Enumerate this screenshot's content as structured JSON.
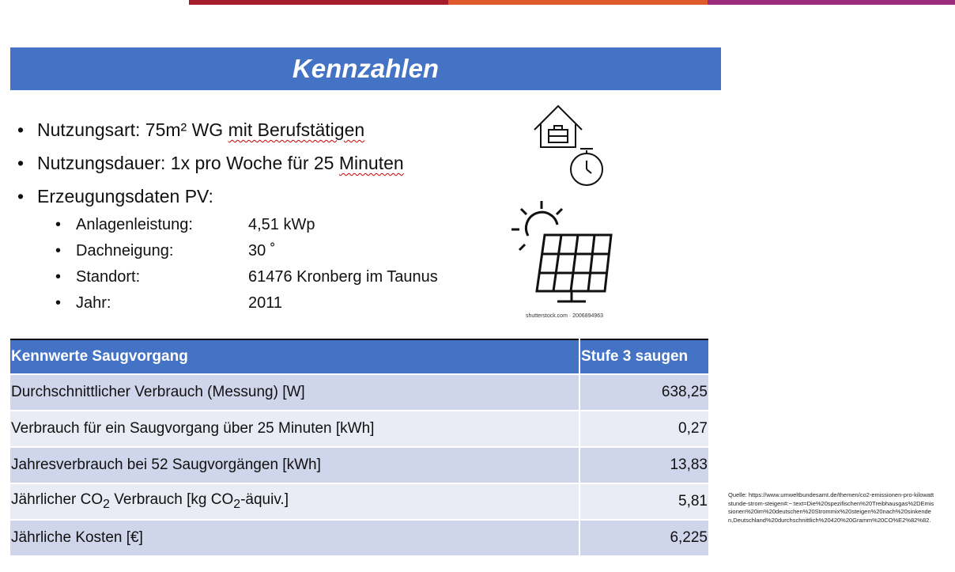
{
  "title": "Kennzahlen",
  "bullets": [
    {
      "prefix": "Nutzungsart: 75m² WG ",
      "flagged": "mit Berufstätigen"
    },
    {
      "prefix": "Nutzungsdauer: 1x pro Woche für 25 ",
      "flagged": "Minuten"
    },
    {
      "prefix": "Erzeugungsdaten PV:",
      "flagged": ""
    }
  ],
  "pv_details": [
    {
      "key": "Anlagenleistung:",
      "value": "4,51 kWp"
    },
    {
      "key": "Dachneigung:",
      "value": "30 ˚"
    },
    {
      "key": "Standort:",
      "value": "61476 Kronberg im Taunus"
    },
    {
      "key": "Jahr:",
      "value": "2011"
    }
  ],
  "icons": [
    "house-briefcase-icon",
    "stopwatch-icon",
    "sun-solar-panel-icon"
  ],
  "image_caption": "shutterstock.com · 2006894963",
  "table": {
    "header": [
      "Kennwerte Saugvorgang",
      "Stufe 3 saugen"
    ],
    "rows": [
      {
        "label": "Durchschnittlicher Verbrauch (Messung) [W]",
        "value": "638,25"
      },
      {
        "label": "Verbrauch für ein Saugvorgang über 25 Minuten [kWh]",
        "value": "0,27"
      },
      {
        "label": "Jahresverbrauch bei 52 Saugvorgängen [kWh]",
        "value": "13,83"
      },
      {
        "label_parts": [
          "Jährlicher CO",
          "2",
          " Verbrauch [kg CO",
          "2",
          "-äquiv.]"
        ],
        "label": "Jährlicher CO2 Verbrauch [kg CO2-äquiv.]",
        "value": "5,81"
      },
      {
        "label": "Jährliche Kosten [€]",
        "value": "6,225"
      }
    ]
  },
  "source": "Quelle: https://www.umweltbundesamt.de/themen/co2-emissionen-pro-kilowattstunde-strom-steigen#:~:text=Die%20spezifischen%20Treibhausgas%2DEmissionen%20im%20deutschen%20Strommix%20steigen%20nach%20sinkenden,Deutschland%20durchschnittlich%20420%20Gramm%20CO%E2%82%82.",
  "colors": {
    "accent_blue": "#4472c4",
    "row_odd": "#cfd5ea",
    "row_even": "#e9ebf5",
    "bar_red": "#a51c2a",
    "bar_orange": "#de5a2a",
    "bar_purple": "#9b2b7d"
  }
}
